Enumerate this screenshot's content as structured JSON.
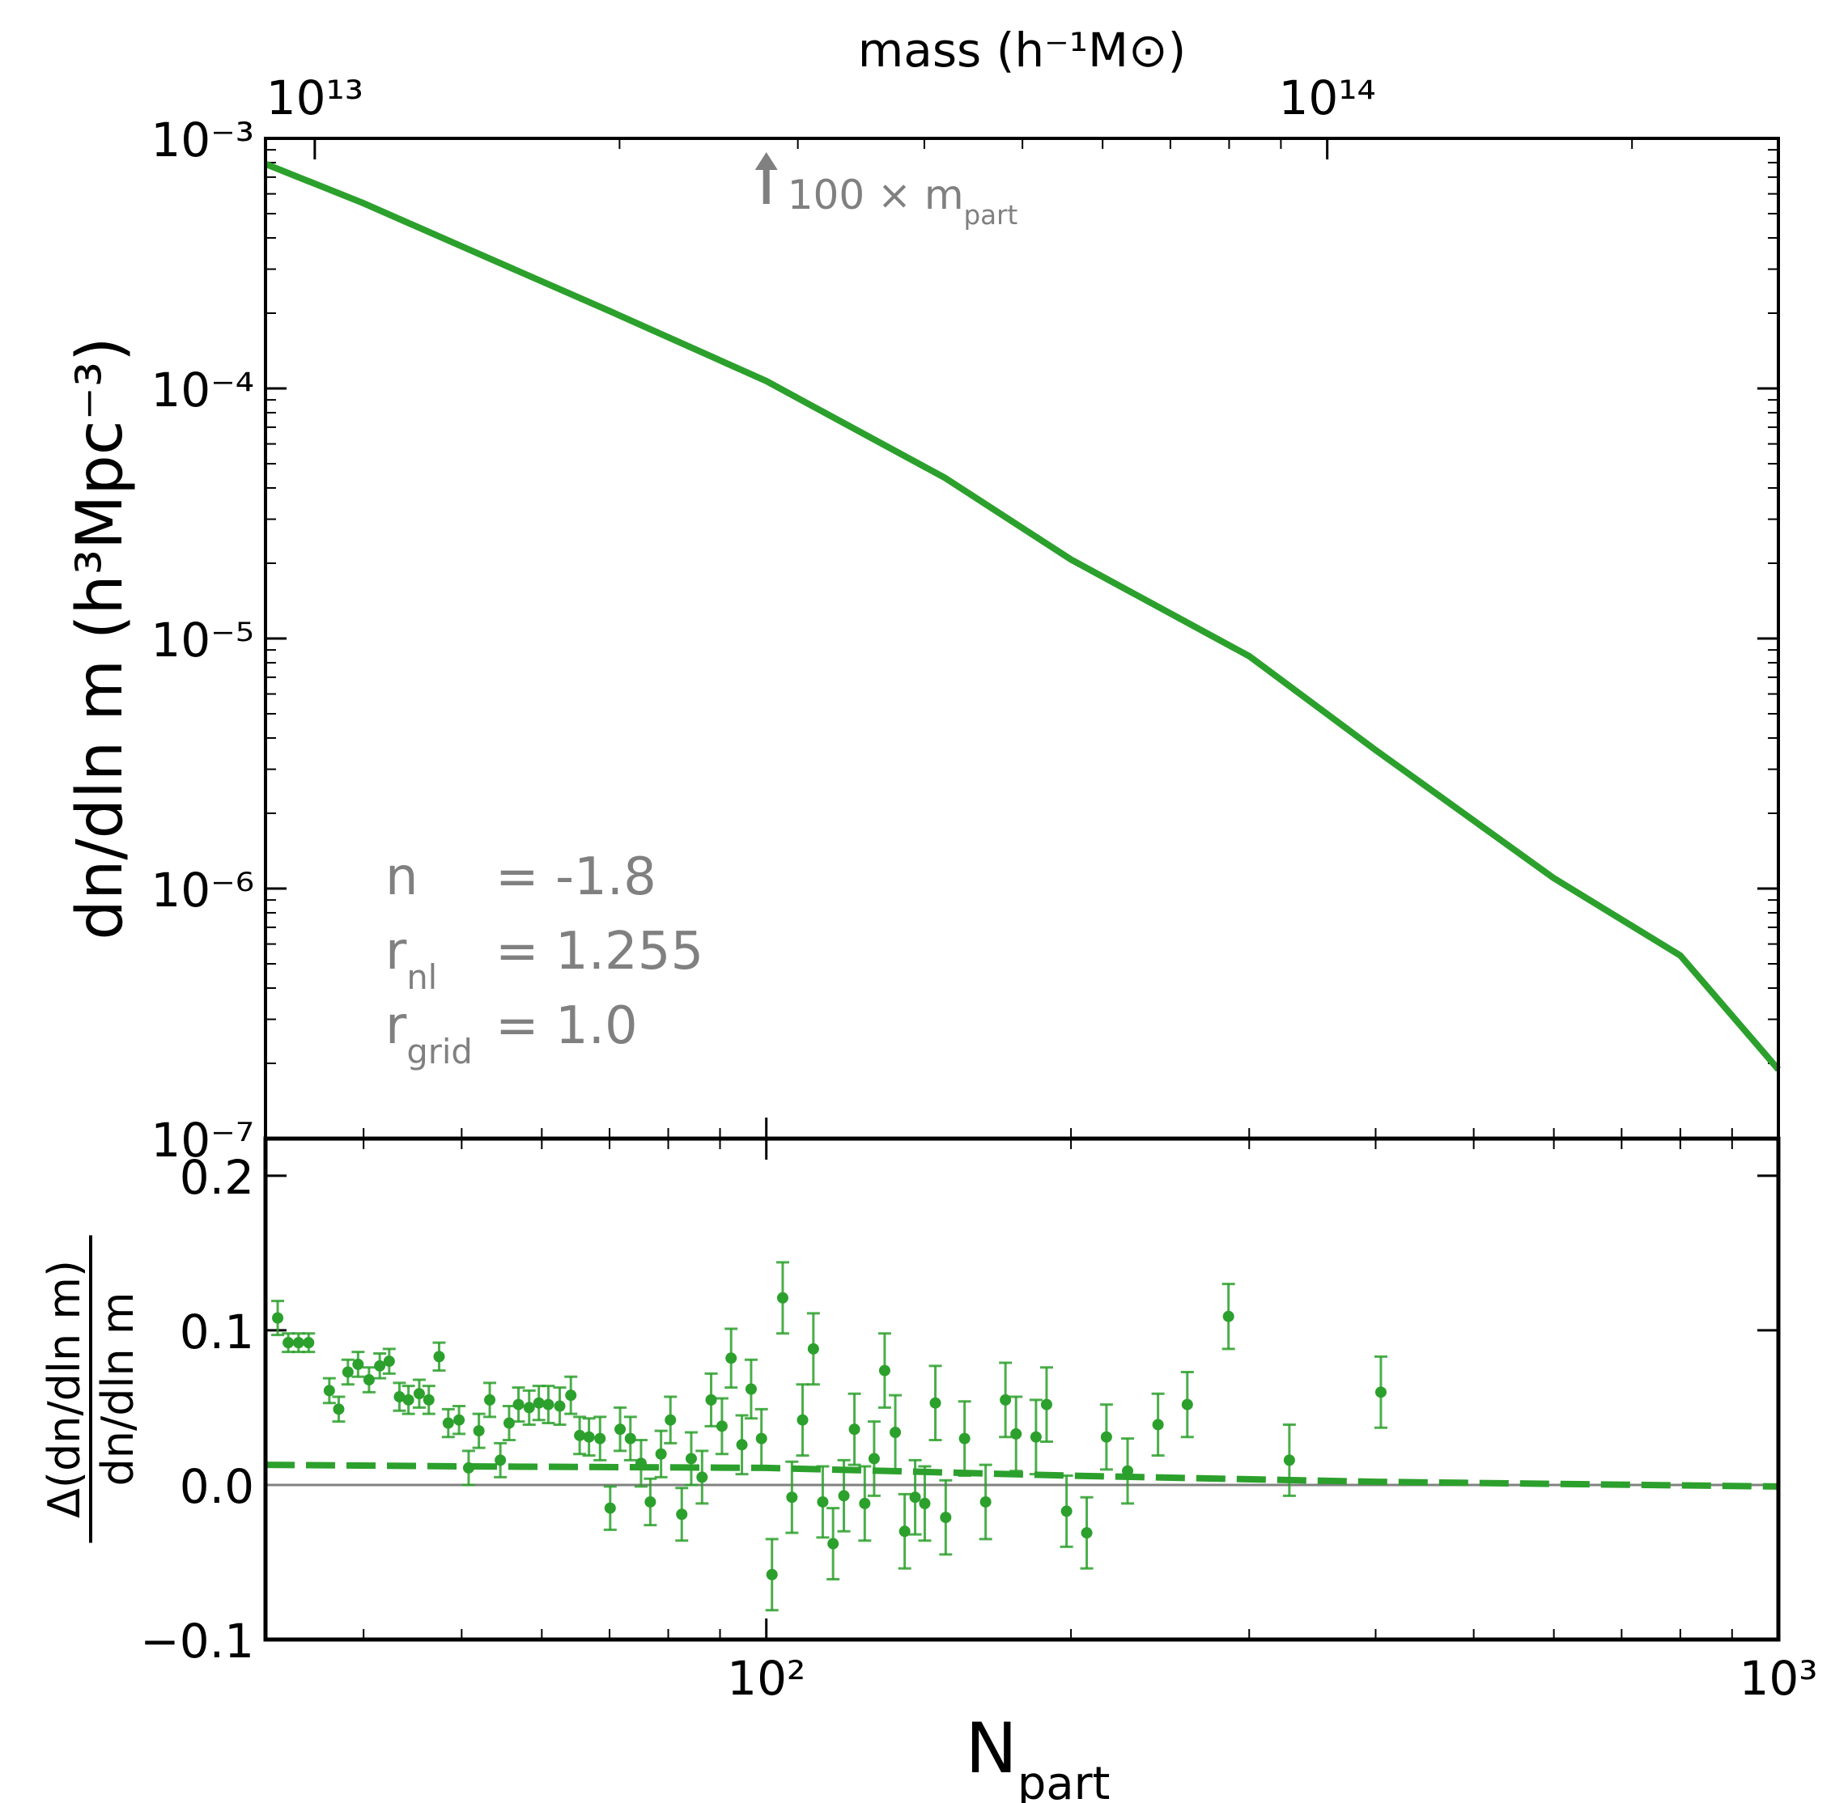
{
  "chart_data": [
    {
      "type": "line",
      "ylabel": "dn/dln m (h³Mpc⁻³)",
      "x2label": "mass (h⁻¹M⊙)",
      "xscale": "log",
      "yscale": "log",
      "xlim": [
        32,
        1000
      ],
      "ylim": [
        1e-07,
        0.001
      ],
      "yticks": [
        {
          "value": 0.001,
          "label": "10⁻³"
        },
        {
          "value": 0.0001,
          "label": "10⁻⁴"
        },
        {
          "value": 1e-05,
          "label": "10⁻⁵"
        },
        {
          "value": 1e-06,
          "label": "10⁻⁶"
        },
        {
          "value": 1e-07,
          "label": "10⁻⁷"
        }
      ],
      "yminor": [
        2e-07,
        3e-07,
        4e-07,
        5e-07,
        6e-07,
        7e-07,
        8e-07,
        9e-07,
        2e-06,
        3e-06,
        4e-06,
        5e-06,
        6e-06,
        7e-06,
        8e-06,
        9e-06,
        2e-05,
        3e-05,
        4e-05,
        5e-05,
        6e-05,
        7e-05,
        8e-05,
        9e-05,
        0.0002,
        0.0003,
        0.0004,
        0.0005,
        0.0006,
        0.0007,
        0.0008,
        0.0009
      ],
      "x2lim": [
        8940000000000.0,
        279000000000000.0
      ],
      "x2ticks": [
        {
          "value": 10000000000000.0,
          "label": "10¹³"
        },
        {
          "value": 100000000000000.0,
          "label": "10¹⁴"
        }
      ],
      "x2minor": [
        20000000000000.0,
        30000000000000.0,
        40000000000000.0,
        50000000000000.0,
        60000000000000.0,
        70000000000000.0,
        80000000000000.0,
        90000000000000.0,
        200000000000000.0
      ],
      "annotation": {
        "text": "100 × m",
        "sub": "part",
        "x": 100
      },
      "params": [
        {
          "symbol": "n",
          "text": "= -1.8"
        },
        {
          "symbol": "r",
          "sub": "nl",
          "text": "= 1.255"
        },
        {
          "symbol": "r",
          "sub": "grid",
          "text": "= 1.0"
        }
      ],
      "series": [
        {
          "color": "#2ca02c",
          "x": [
            32,
            40,
            50,
            70,
            100,
            150,
            200,
            300,
            400,
            600,
            800,
            1000
          ],
          "values": [
            0.00079,
            0.00055,
            0.00037,
            0.000204,
            0.000107,
            4.4e-05,
            2.07e-05,
            8.5e-06,
            3.58e-06,
            1.1e-06,
            5.4e-07,
            1.89e-07
          ]
        }
      ]
    },
    {
      "type": "errorbar",
      "xlabel": {
        "text": "N",
        "sub": "part"
      },
      "ylabel": {
        "numerator": "Δ(dn/dln m)",
        "denominator": "dn/dln m"
      },
      "xscale": "log",
      "xlim": [
        32,
        1000
      ],
      "xticks": [
        {
          "value": 100,
          "label": "10²"
        },
        {
          "value": 1000,
          "label": "10³"
        }
      ],
      "xminor": [
        40,
        50,
        60,
        70,
        80,
        90,
        200,
        300,
        400,
        500,
        600,
        700,
        800,
        900
      ],
      "ylim": [
        -0.1,
        0.224
      ],
      "yticks": [
        {
          "value": -0.1,
          "label": "−0.1"
        },
        {
          "value": 0,
          "label": "0.0"
        },
        {
          "value": 0.1,
          "label": "0.1"
        },
        {
          "value": 0.2,
          "label": "0.2"
        }
      ],
      "hline": {
        "value": 0,
        "color": "#808080"
      },
      "series": [
        {
          "color": "#2ca02c",
          "style": "points",
          "x": [
            32.9,
            33.7,
            34.5,
            35.3,
            37.0,
            37.8,
            38.6,
            39.5,
            40.5,
            41.5,
            42.4,
            43.4,
            44.3,
            45.4,
            46.4,
            47.5,
            48.5,
            49.7,
            50.8,
            52.0,
            53.3,
            54.6,
            55.7,
            56.9,
            58.3,
            59.6,
            60.9,
            62.5,
            64.1,
            65.4,
            66.8,
            68.5,
            70.1,
            71.7,
            73.4,
            75.2,
            76.8,
            78.7,
            80.4,
            82.5,
            84.3,
            86.4,
            88.2,
            90.4,
            92.3,
            94.6,
            96.6,
            98.9,
            101.3,
            103.8,
            106.0,
            108.6,
            111.3,
            113.7,
            116.4,
            119.3,
            122.2,
            125.1,
            127.8,
            130.9,
            134.1,
            137.0,
            140.3,
            143.4,
            146.9,
            150.4,
            157.0,
            164.7,
            172.3,
            176.5,
            184.7,
            189.2,
            198.0,
            207.3,
            216.8,
            227.5,
            243.8,
            260.6,
            286.2,
            328.7,
            404.8
          ],
          "values": [
            0.108,
            0.092,
            0.092,
            0.092,
            0.061,
            0.049,
            0.073,
            0.078,
            0.068,
            0.077,
            0.08,
            0.057,
            0.055,
            0.059,
            0.055,
            0.083,
            0.04,
            0.042,
            0.011,
            0.035,
            0.055,
            0.016,
            0.04,
            0.052,
            0.05,
            0.053,
            0.052,
            0.051,
            0.058,
            0.032,
            0.031,
            0.03,
            -0.015,
            0.036,
            0.03,
            0.014,
            -0.011,
            0.02,
            0.042,
            -0.019,
            0.017,
            0.005,
            0.055,
            0.038,
            0.082,
            0.026,
            0.062,
            0.03,
            -0.058,
            0.121,
            -0.008,
            0.042,
            0.088,
            -0.011,
            -0.038,
            -0.007,
            0.036,
            -0.012,
            0.017,
            0.074,
            0.034,
            -0.03,
            -0.008,
            -0.012,
            0.053,
            -0.021,
            0.03,
            -0.011,
            0.055,
            0.033,
            0.031,
            0.052,
            -0.017,
            -0.031,
            0.031,
            0.009,
            0.039,
            0.052,
            0.109,
            0.016,
            0.06
          ],
          "errors": [
            0.011,
            0.006,
            0.006,
            0.006,
            0.008,
            0.008,
            0.008,
            0.008,
            0.008,
            0.008,
            0.008,
            0.009,
            0.009,
            0.009,
            0.009,
            0.009,
            0.009,
            0.009,
            0.011,
            0.011,
            0.011,
            0.011,
            0.011,
            0.011,
            0.011,
            0.011,
            0.012,
            0.012,
            0.012,
            0.012,
            0.012,
            0.014,
            0.014,
            0.014,
            0.014,
            0.015,
            0.015,
            0.015,
            0.015,
            0.017,
            0.017,
            0.017,
            0.017,
            0.018,
            0.019,
            0.019,
            0.019,
            0.019,
            0.023,
            0.023,
            0.023,
            0.023,
            0.023,
            0.023,
            0.023,
            0.023,
            0.023,
            0.024,
            0.024,
            0.024,
            0.024,
            0.024,
            0.024,
            0.024,
            0.024,
            0.024,
            0.024,
            0.024,
            0.024,
            0.024,
            0.024,
            0.024,
            0.023,
            0.023,
            0.021,
            0.021,
            0.02,
            0.021,
            0.021,
            0.023,
            0.023
          ]
        },
        {
          "color": "#2ca02c",
          "style": "dashed",
          "x": [
            32,
            50,
            100,
            200,
            400,
            1000
          ],
          "values": [
            0.013,
            0.012,
            0.011,
            0.006,
            0.002,
            -0.001
          ]
        }
      ]
    }
  ]
}
